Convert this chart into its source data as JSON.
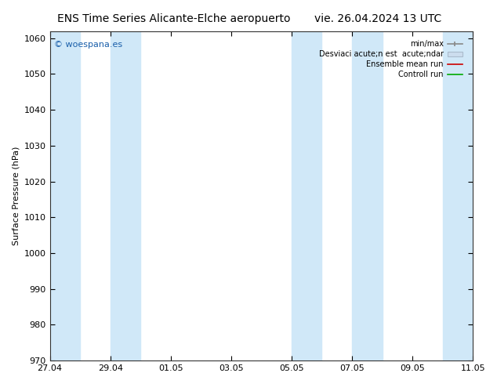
{
  "title_left": "ENS Time Series Alicante-Elche aeropuerto",
  "title_right": "vie. 26.04.2024 13 UTC",
  "ylabel": "Surface Pressure (hPa)",
  "ylim": [
    970,
    1062
  ],
  "yticks": [
    970,
    980,
    990,
    1000,
    1010,
    1020,
    1030,
    1040,
    1050,
    1060
  ],
  "x_tick_labels": [
    "27.04",
    "29.04",
    "01.05",
    "03.05",
    "05.05",
    "07.05",
    "09.05",
    "11.05"
  ],
  "x_tick_positions": [
    0,
    2,
    4,
    6,
    8,
    10,
    12,
    14
  ],
  "xlim": [
    0,
    14
  ],
  "shaded_intervals": [
    [
      0,
      1
    ],
    [
      2,
      3
    ],
    [
      8,
      9
    ],
    [
      10,
      11
    ],
    [
      13,
      14
    ]
  ],
  "shaded_band_color": "#d0e8f8",
  "background_color": "#ffffff",
  "plot_bg_color": "#ffffff",
  "watermark": "© woespana.es",
  "watermark_color": "#1a5faa",
  "legend_entries": [
    "min/max",
    "Desviaci acute;n est  acute;ndar",
    "Ensemble mean run",
    "Controll run"
  ],
  "legend_colors_line": [
    "#888888",
    "#bbbbbb",
    "#cc0000",
    "#00aa00"
  ],
  "title_fontsize": 10,
  "axis_fontsize": 8,
  "tick_fontsize": 8,
  "figsize": [
    6.34,
    4.9
  ],
  "dpi": 100
}
